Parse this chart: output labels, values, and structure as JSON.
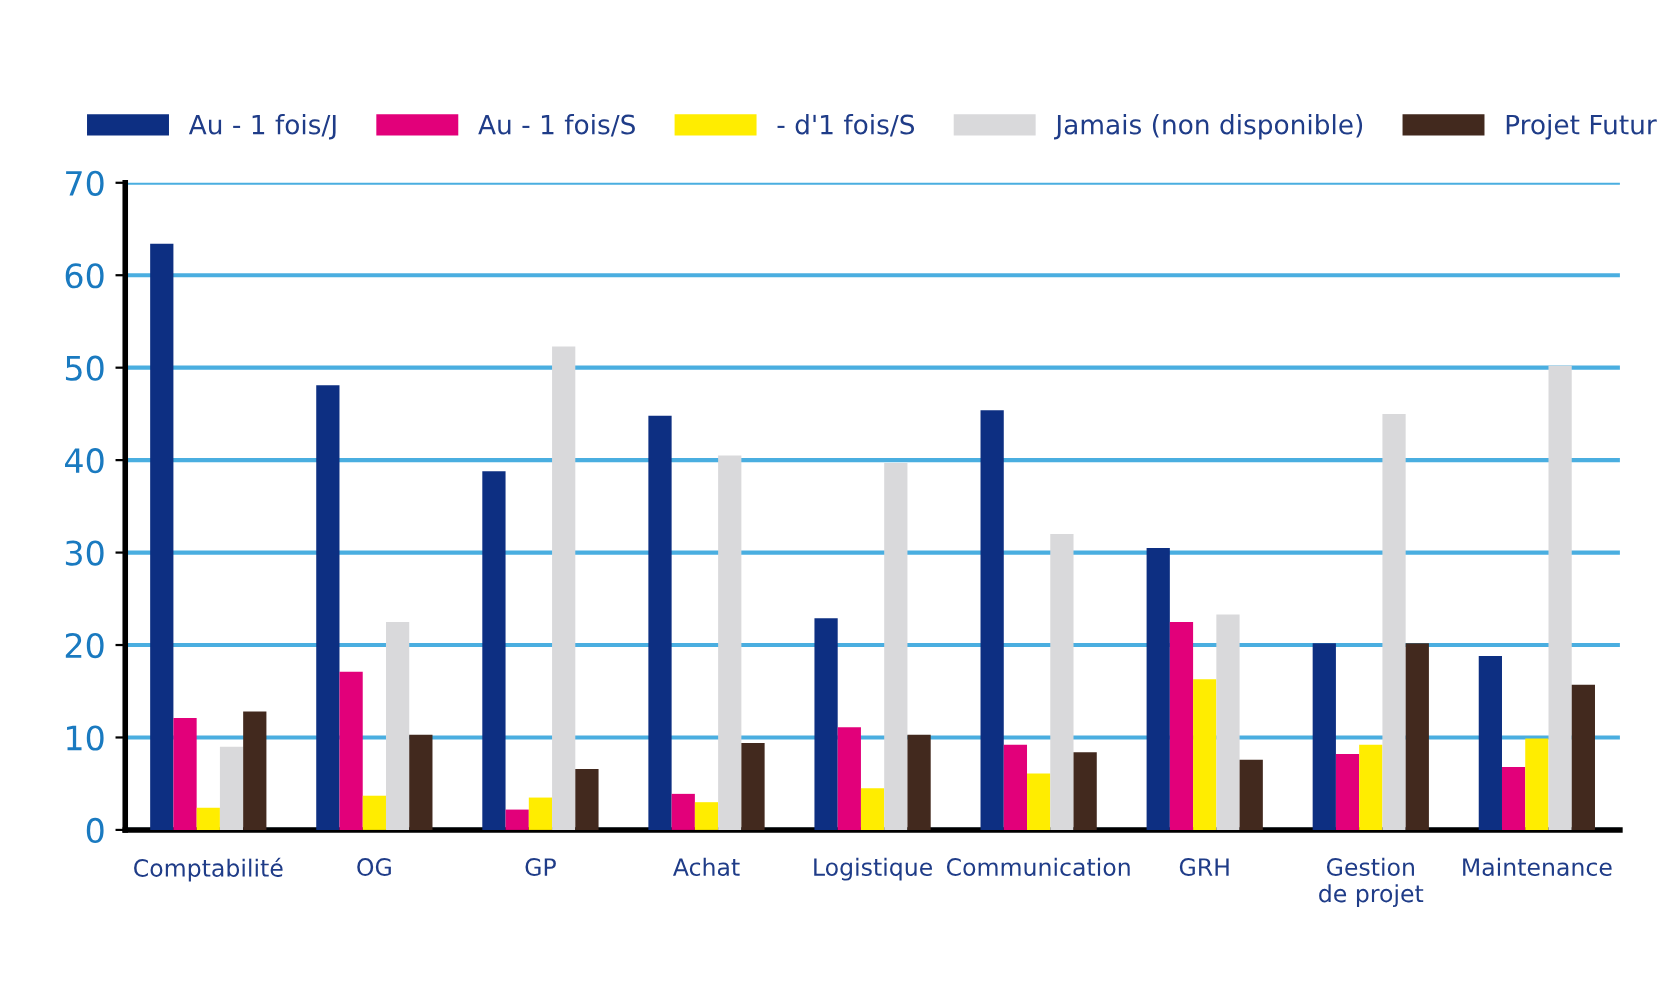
{
  "chart_data": {
    "type": "bar",
    "categories": [
      "Comptabilité",
      "OG",
      "GP",
      "Achat",
      "Logistique",
      "Communication",
      "GRH",
      "Gestion\nde projet",
      "Maintenance"
    ],
    "series": [
      {
        "name": "Au - 1 fois/J",
        "color": "#0d2f82",
        "values": [
          63.4,
          48.1,
          38.8,
          44.8,
          22.9,
          45.4,
          30.5,
          20.2,
          18.8
        ]
      },
      {
        "name": "Au - 1 fois/S",
        "color": "#e2007a",
        "values": [
          12.1,
          17.1,
          2.2,
          3.9,
          11.1,
          9.2,
          22.5,
          8.2,
          6.8
        ]
      },
      {
        "name": "- d'1 fois/S",
        "color": "#ffed00",
        "values": [
          2.4,
          3.7,
          3.5,
          3.0,
          4.5,
          6.1,
          16.3,
          9.2,
          9.9
        ]
      },
      {
        "name": "Jamais (non disponible)",
        "color": "#d9d9db",
        "values": [
          9.0,
          22.5,
          52.3,
          40.5,
          39.7,
          32.0,
          23.3,
          45.0,
          50.2
        ]
      },
      {
        "name": "Projet Futur",
        "color": "#42291e",
        "values": [
          12.8,
          10.3,
          6.6,
          9.4,
          10.3,
          8.4,
          7.6,
          20.2,
          15.7
        ]
      }
    ],
    "ylim": [
      0,
      70
    ],
    "yticks": [
      0,
      10,
      20,
      30,
      40,
      50,
      60,
      70
    ],
    "grid": "y",
    "legend": "top"
  }
}
